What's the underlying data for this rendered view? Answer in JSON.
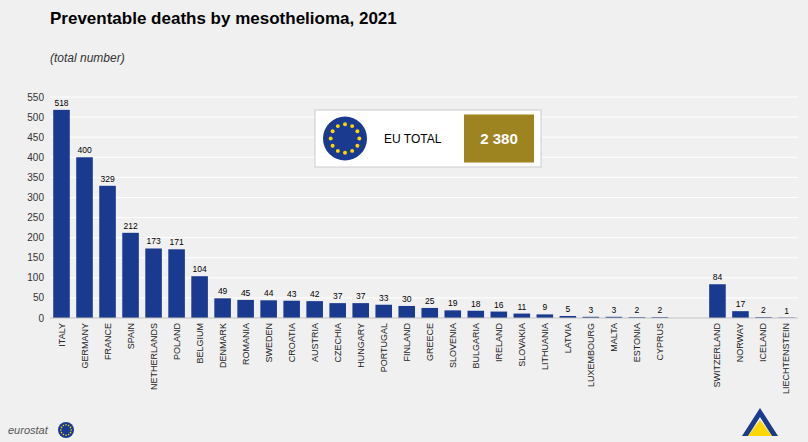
{
  "chart_data": {
    "type": "bar",
    "title": "Preventable deaths by mesothelioma, 2021",
    "subtitle": "(total number)",
    "categories": [
      "ITALY",
      "GERMANY",
      "FRANCE",
      "SPAIN",
      "NETHERLANDS",
      "POLAND",
      "BELGIUM",
      "DENMARK",
      "ROMANIA",
      "SWEDEN",
      "CROATIA",
      "AUSTRIA",
      "CZECHIA",
      "HUNGARY",
      "PORTUGAL",
      "FINLAND",
      "GREECE",
      "SLOVENIA",
      "BULGARIA",
      "IRELAND",
      "SLOVAKIA",
      "LITHUANIA",
      "LATVIA",
      "LUXEMBOURG",
      "MALTA",
      "ESTONIA",
      "CYPRUS",
      "SWITZERLAND",
      "NORWAY",
      "ICELAND",
      "LIECHTENSTEIN"
    ],
    "values": [
      518,
      400,
      329,
      212,
      173,
      171,
      104,
      49,
      45,
      44,
      43,
      42,
      37,
      37,
      33,
      30,
      25,
      19,
      18,
      16,
      11,
      9,
      5,
      3,
      3,
      2,
      2,
      84,
      17,
      2,
      1
    ],
    "color": "#1a3a8f",
    "ylim": [
      0,
      550
    ],
    "yticks": [
      0,
      50,
      100,
      150,
      200,
      250,
      300,
      350,
      400,
      450,
      500,
      550
    ],
    "grid": true,
    "data_labels": true,
    "annotations": [
      "EU TOTAL",
      "2 380",
      "eurostat"
    ]
  }
}
